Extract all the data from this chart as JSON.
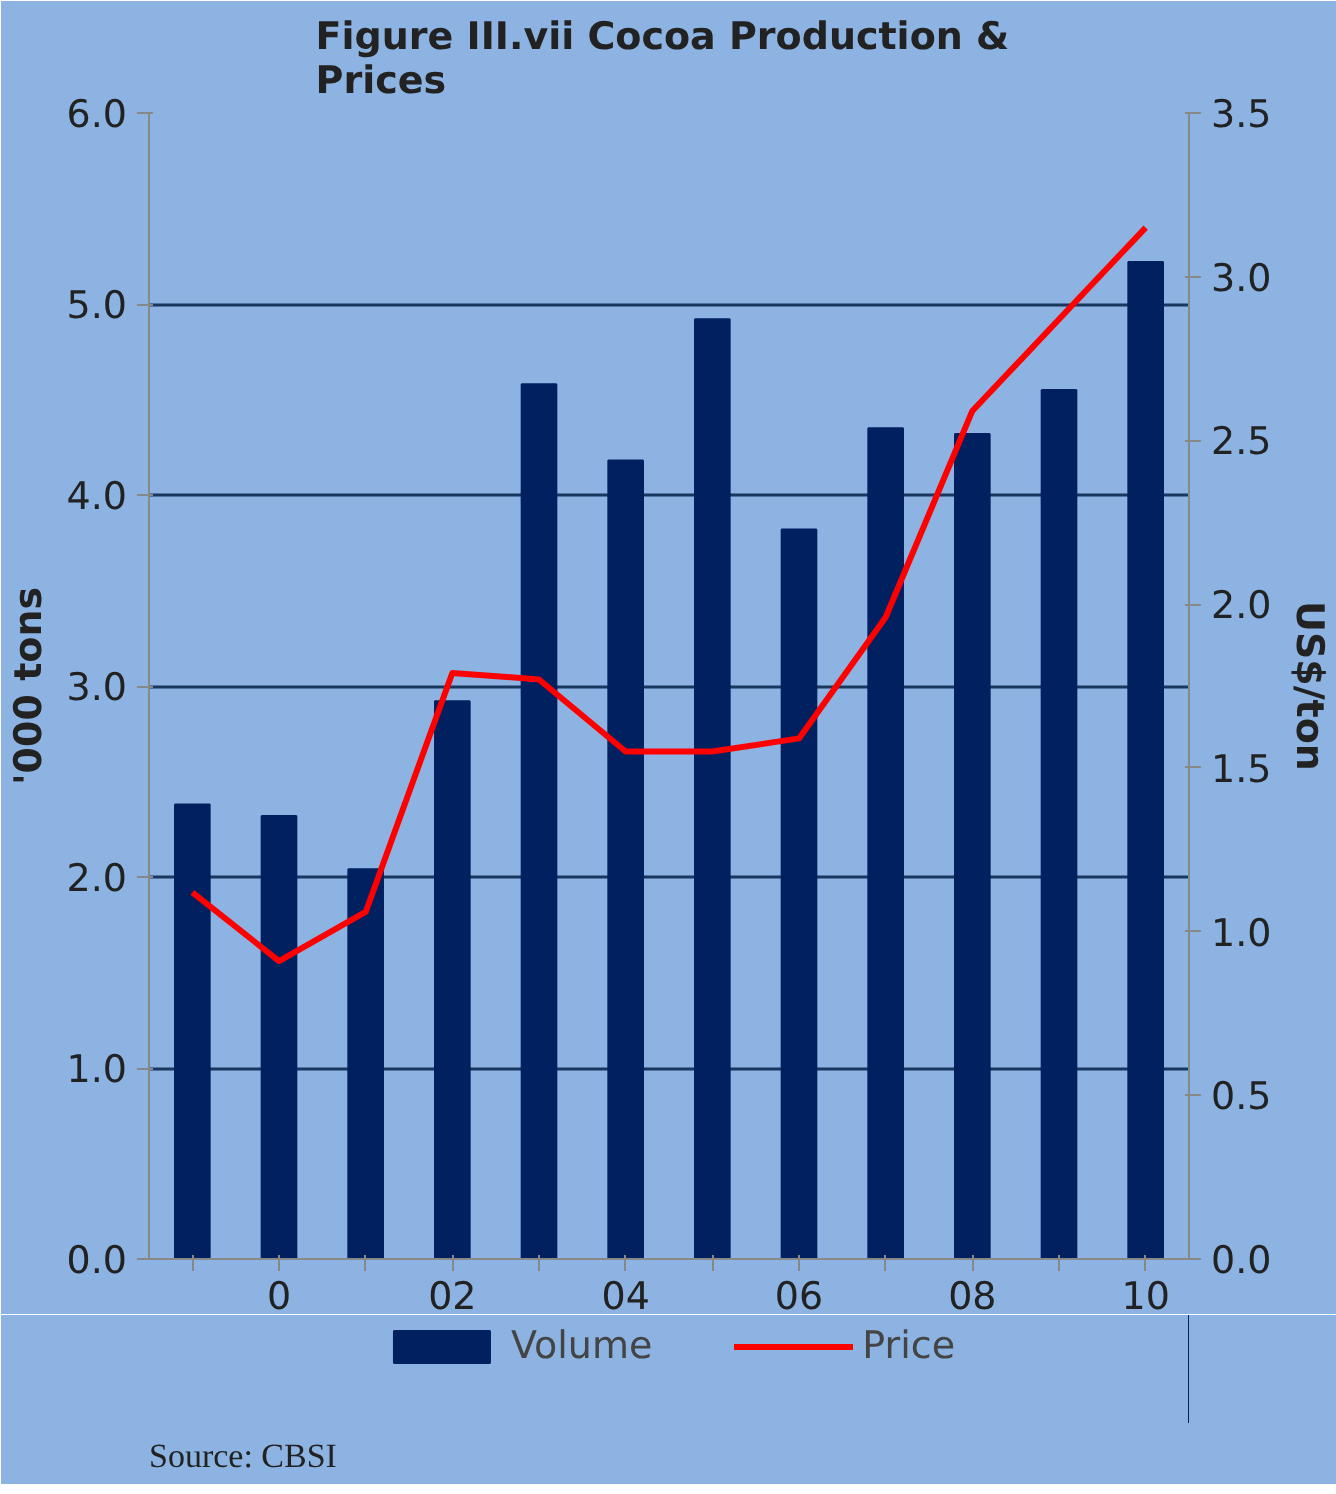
{
  "chart_data": {
    "type": "bar",
    "title": "Figure III.vii  Cocoa Production & Prices",
    "categories": [
      null,
      "0",
      null,
      "02",
      null,
      "04",
      null,
      "06",
      null,
      "08",
      null,
      "10"
    ],
    "series": [
      {
        "name": "Volume",
        "color": "#002060",
        "values": [
          2.38,
          2.32,
          2.04,
          2.92,
          4.58,
          4.18,
          4.92,
          3.82,
          4.35,
          4.32,
          4.55,
          5.22
        ]
      },
      {
        "name": "Price",
        "type": "line",
        "axis": "y2",
        "color": "#ff0000",
        "values": [
          1.12,
          0.91,
          1.06,
          1.79,
          1.77,
          1.55,
          1.55,
          1.59,
          1.96,
          2.59,
          2.87,
          3.15
        ]
      }
    ],
    "ylabel": "'000 tons",
    "y2label": "US$/ton",
    "ylim": [
      0,
      6
    ],
    "yticks": [
      {
        "value": 0,
        "label": "0.0"
      },
      {
        "value": 1,
        "label": "1.0"
      },
      {
        "value": 2,
        "label": "2.0"
      },
      {
        "value": 3,
        "label": "3.0"
      },
      {
        "value": 4,
        "label": "4.0"
      },
      {
        "value": 5,
        "label": "5.0"
      },
      {
        "value": 6,
        "label": "6.0"
      }
    ],
    "y2lim": [
      0,
      3.5
    ],
    "y2ticks": [
      {
        "value": 0,
        "label": "0.0"
      },
      {
        "value": 0.5,
        "label": "0.5"
      },
      {
        "value": 1,
        "label": "1.0"
      },
      {
        "value": 1.5,
        "label": "1.5"
      },
      {
        "value": 2,
        "label": "2.0"
      },
      {
        "value": 2.5,
        "label": "2.5"
      },
      {
        "value": 3,
        "label": "3.0"
      },
      {
        "value": 3.5,
        "label": "3.5"
      }
    ],
    "grid": "y",
    "legend": "bottom",
    "marker": "none",
    "line_style": "solid",
    "annotations": [
      "Source: CBSI"
    ]
  }
}
